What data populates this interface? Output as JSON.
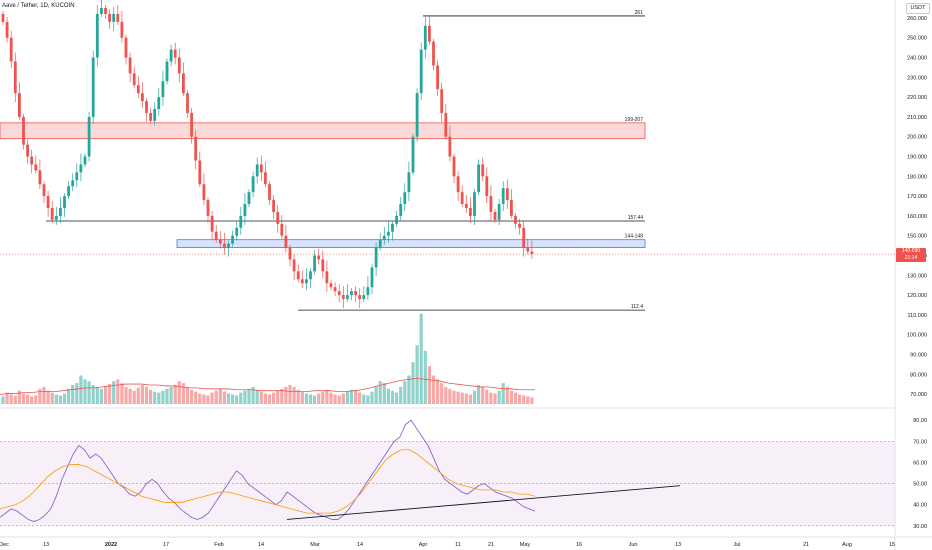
{
  "header": {
    "symbol_title": "Aave / Tether, 1D, KUCOIN",
    "currency": "USDT",
    "last_price": "140.690",
    "countdown": "21:14"
  },
  "colors": {
    "up": "#26a69a",
    "down": "#ef5350",
    "resistance_zone": "#ef5350",
    "support_zone": "#4a7cf0",
    "rsi": "#7e57c2",
    "rsi_ma": "#ff9800",
    "volume_ma": "#ef5350"
  },
  "chart_data": [
    {
      "type": "candlestick",
      "title": "Aave / Tether, 1D, KUCOIN",
      "y_unit": "USDT",
      "x_tick_labels": [
        "Dec",
        "13",
        "2022",
        "17",
        "Feb",
        "14",
        "Mar",
        "14",
        "Apr",
        "11",
        "21",
        "May",
        "16",
        "Jun",
        "13",
        "Jul",
        "21",
        "Aug",
        "15"
      ],
      "y_tick_labels": [
        "70.000",
        "80.000",
        "90.000",
        "100.000",
        "110.000",
        "120.000",
        "130.000",
        "140.000",
        "150.000",
        "160.000",
        "170.000",
        "180.000",
        "190.000",
        "200.000",
        "210.000",
        "220.000",
        "230.000",
        "240.000",
        "250.000",
        "260.000"
      ],
      "ylim": [
        65,
        264
      ],
      "close_values": [
        258,
        250,
        238,
        222,
        210,
        196,
        190,
        186,
        183,
        176,
        170,
        164,
        158,
        160,
        164,
        170,
        175,
        178,
        182,
        186,
        190,
        210,
        240,
        262,
        265,
        262,
        258,
        262,
        258,
        250,
        240,
        232,
        226,
        222,
        218,
        212,
        208,
        214,
        220,
        228,
        238,
        244,
        240,
        232,
        222,
        212,
        200,
        188,
        176,
        168,
        160,
        152,
        148,
        146,
        144,
        146,
        150,
        154,
        160,
        166,
        172,
        180,
        186,
        182,
        176,
        168,
        162,
        156,
        150,
        144,
        138,
        132,
        128,
        126,
        128,
        132,
        140,
        138,
        132,
        126,
        124,
        122,
        120,
        118,
        120,
        122,
        120,
        118,
        120,
        124,
        134,
        144,
        148,
        150,
        152,
        156,
        160,
        166,
        172,
        182,
        200,
        222,
        244,
        256,
        248,
        236,
        224,
        212,
        200,
        190,
        180,
        172,
        166,
        164,
        160,
        172,
        186,
        180,
        170,
        162,
        158,
        166,
        174,
        168,
        160,
        156,
        154,
        144,
        142,
        140.69
      ],
      "annotations": [
        {
          "label": "261",
          "level": 261
        },
        {
          "label": "199-207",
          "zone": [
            199,
            207
          ]
        },
        {
          "label": "157.44",
          "level": 157.44
        },
        {
          "label": "144-148",
          "zone": [
            144,
            148
          ]
        },
        {
          "label": "112.4",
          "level": 112.4
        }
      ]
    },
    {
      "type": "bar",
      "title": "",
      "name": "Volume",
      "values": [
        8,
        12,
        10,
        9,
        14,
        11,
        10,
        8,
        9,
        16,
        18,
        14,
        12,
        10,
        9,
        11,
        16,
        20,
        22,
        30,
        26,
        24,
        20,
        18,
        16,
        19,
        21,
        24,
        26,
        22,
        18,
        16,
        14,
        17,
        20,
        18,
        15,
        13,
        12,
        14,
        16,
        18,
        20,
        24,
        22,
        18,
        15,
        13,
        11,
        10,
        9,
        12,
        14,
        16,
        13,
        11,
        10,
        9,
        12,
        14,
        16,
        18,
        15,
        13,
        11,
        10,
        12,
        14,
        16,
        18,
        20,
        18,
        15,
        13,
        11,
        10,
        9,
        11,
        13,
        15,
        12,
        10,
        9,
        11,
        13,
        15,
        14,
        12,
        10,
        9,
        13,
        18,
        24,
        22,
        16,
        14,
        12,
        18,
        24,
        30,
        44,
        62,
        95,
        56,
        40,
        30,
        26,
        22,
        18,
        16,
        14,
        13,
        12,
        11,
        10,
        14,
        20,
        18,
        15,
        12,
        11,
        14,
        22,
        18,
        14,
        12,
        10,
        9,
        8,
        7
      ],
      "ma_values": [
        10,
        11,
        11,
        12,
        12,
        13,
        13,
        13,
        14,
        15,
        16,
        17,
        17,
        18,
        19,
        20,
        21,
        21,
        21,
        20,
        20,
        19,
        19,
        18,
        17,
        17,
        16,
        16,
        16,
        16,
        15,
        15,
        15,
        14,
        14,
        14,
        14,
        13,
        13,
        13,
        14,
        14,
        14,
        13,
        13,
        14,
        15,
        17,
        19,
        21,
        23,
        25,
        26,
        27,
        26,
        25,
        24,
        22,
        21,
        20,
        19,
        18,
        18,
        17,
        16,
        16,
        15,
        15,
        15
      ]
    },
    {
      "type": "line",
      "title": "",
      "name": "RSI",
      "y_tick_labels": [
        "30.00",
        "40.00",
        "50.00",
        "60.00",
        "70.00",
        "80.00"
      ],
      "ylim": [
        28,
        82
      ],
      "values": [
        34,
        36,
        38,
        37,
        35,
        33,
        32,
        33,
        35,
        38,
        44,
        52,
        58,
        64,
        68,
        66,
        62,
        64,
        62,
        58,
        54,
        50,
        48,
        45,
        44,
        46,
        50,
        52,
        50,
        46,
        43,
        41,
        38,
        36,
        34,
        33,
        34,
        36,
        40,
        44,
        48,
        52,
        56,
        54,
        50,
        48,
        46,
        44,
        42,
        40,
        42,
        46,
        44,
        42,
        40,
        38,
        36,
        35,
        34,
        33,
        33,
        35,
        38,
        42,
        46,
        50,
        54,
        58,
        62,
        66,
        70,
        72,
        78,
        80,
        76,
        72,
        68,
        62,
        56,
        52,
        50,
        48,
        46,
        45,
        47,
        49,
        50,
        48,
        46,
        45,
        44,
        43,
        41,
        39,
        38,
        37
      ],
      "ma_values": [
        38,
        39,
        40,
        42,
        45,
        49,
        53,
        56,
        58,
        59,
        59,
        58,
        56,
        54,
        52,
        50,
        48,
        46,
        44,
        43,
        42,
        41,
        41,
        41,
        42,
        43,
        44,
        45,
        46,
        46,
        45,
        44,
        43,
        42,
        41,
        40,
        39,
        38,
        37,
        36,
        36,
        36,
        36,
        37,
        39,
        42,
        46,
        51,
        56,
        61,
        64,
        66,
        66,
        64,
        61,
        58,
        55,
        52,
        50,
        49,
        48,
        47,
        47,
        47,
        46,
        46,
        45,
        45,
        44
      ],
      "levels": [
        70,
        50,
        30
      ]
    }
  ]
}
